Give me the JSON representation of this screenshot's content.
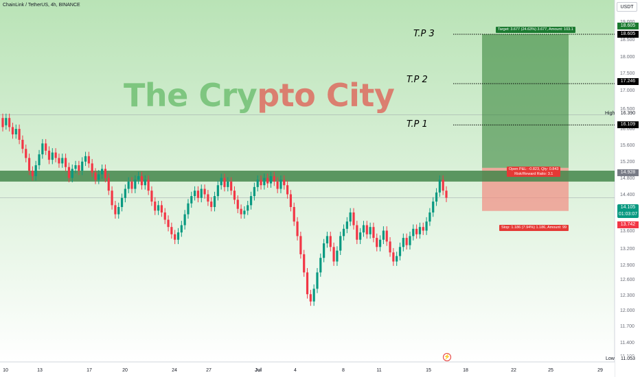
{
  "header": {
    "symbol_title": "ChainLink / TetherUS, 4h, BINANCE",
    "currency": "USDT"
  },
  "watermark": {
    "part_a": "The Cry",
    "part_b": "pto City"
  },
  "annotations": {
    "tp3": "T.P 3",
    "tp2": "T.P 2",
    "tp1": "T.P 1",
    "target_text": "Target: 3.677 (24.63%) 3.677, Amount: 103.1",
    "pnl_text_1": "Open P&L: -0.823, Qty: 0.843",
    "pnl_text_2": "Risk/Reward Ratio: 3.1",
    "stop_text": "Stop: 1.186 (7.94%) 1.186, Amount: 99"
  },
  "price_tags": {
    "target_top": "18.605",
    "target_line": "18.605",
    "tp2": "17.246",
    "high_value": "16.390",
    "tp1": "16.109",
    "entry": "14.928",
    "current": "14.105",
    "countdown": "01:03:07",
    "stop": "13.742",
    "low_value": "11.053"
  },
  "labels": {
    "high": "High",
    "low": "Low"
  },
  "icons": {
    "lightning": "⚡"
  },
  "colors": {
    "up": "#089981",
    "down": "#f23645",
    "bg_top": "#b9e3b6",
    "zone": "#43864a"
  },
  "chart_data": {
    "type": "candlestick",
    "timeframe": "4h",
    "y_ticks": [
      "19.000",
      "18.500",
      "18.000",
      "17.500",
      "17.000",
      "16.500",
      "16.000",
      "15.600",
      "15.200",
      "14.800",
      "14.400",
      "14.000",
      "13.600",
      "13.200",
      "12.900",
      "12.600",
      "12.300",
      "12.000",
      "11.700",
      "11.400",
      "11.100"
    ],
    "x_ticks": [
      "10",
      "13",
      "17",
      "20",
      "24",
      "27",
      "Jul",
      "4",
      "8",
      "11",
      "15",
      "18",
      "22",
      "25",
      "29"
    ],
    "last_price": 14.105,
    "high": 16.39,
    "low": 11.053,
    "position": {
      "entry": 14.928,
      "target": 18.605,
      "stop": 13.742
    },
    "take_profits": [
      {
        "label": "T.P 3",
        "price": 18.605
      },
      {
        "label": "T.P 2",
        "price": 17.246
      },
      {
        "label": "T.P 1",
        "price": 16.109
      }
    ],
    "zone": {
      "from": 14.55,
      "to": 14.85
    },
    "candles": [
      [
        16.3,
        16.05
      ],
      [
        16.1,
        16.3
      ],
      [
        16.3,
        16.05
      ],
      [
        16.05,
        15.85
      ],
      [
        15.85,
        16.0
      ],
      [
        16.0,
        15.7
      ],
      [
        15.7,
        15.45
      ],
      [
        15.45,
        15.2
      ],
      [
        15.2,
        14.85
      ],
      [
        14.85,
        14.7
      ],
      [
        14.7,
        15.0
      ],
      [
        15.0,
        15.3
      ],
      [
        15.3,
        15.6
      ],
      [
        15.6,
        15.4
      ],
      [
        15.4,
        15.15
      ],
      [
        15.15,
        15.35
      ],
      [
        15.35,
        15.2
      ],
      [
        15.2,
        15.05
      ],
      [
        15.05,
        15.2
      ],
      [
        15.2,
        14.95
      ],
      [
        14.95,
        14.65
      ],
      [
        14.65,
        14.9
      ],
      [
        14.9,
        15.0
      ],
      [
        15.0,
        14.85
      ],
      [
        14.85,
        15.1
      ],
      [
        15.1,
        15.25
      ],
      [
        15.25,
        15.05
      ],
      [
        15.05,
        14.8
      ],
      [
        14.8,
        14.6
      ],
      [
        14.6,
        14.75
      ],
      [
        14.75,
        14.9
      ],
      [
        14.9,
        14.65
      ],
      [
        14.65,
        14.3
      ],
      [
        14.3,
        13.9
      ],
      [
        13.9,
        13.65
      ],
      [
        13.65,
        13.85
      ],
      [
        13.85,
        14.1
      ],
      [
        14.1,
        14.35
      ],
      [
        14.35,
        14.55
      ],
      [
        14.55,
        14.35
      ],
      [
        14.35,
        14.6
      ],
      [
        14.6,
        14.7
      ],
      [
        14.7,
        14.45
      ],
      [
        14.45,
        14.6
      ],
      [
        14.6,
        14.3
      ],
      [
        14.3,
        14.0
      ],
      [
        14.0,
        13.75
      ],
      [
        13.75,
        13.9
      ],
      [
        13.9,
        13.7
      ],
      [
        13.7,
        13.5
      ],
      [
        13.5,
        13.3
      ],
      [
        13.3,
        13.1
      ],
      [
        13.1,
        12.95
      ],
      [
        12.95,
        13.15
      ],
      [
        13.15,
        13.35
      ],
      [
        13.35,
        13.65
      ],
      [
        13.65,
        13.95
      ],
      [
        13.95,
        14.15
      ],
      [
        14.15,
        14.3
      ],
      [
        14.3,
        14.1
      ],
      [
        14.1,
        14.35
      ],
      [
        14.35,
        14.2
      ],
      [
        14.2,
        14.0
      ],
      [
        14.0,
        13.85
      ],
      [
        13.85,
        14.15
      ],
      [
        14.15,
        14.45
      ],
      [
        14.45,
        14.65
      ],
      [
        14.65,
        14.4
      ],
      [
        14.4,
        14.55
      ],
      [
        14.55,
        14.3
      ],
      [
        14.3,
        14.05
      ],
      [
        14.05,
        13.8
      ],
      [
        13.8,
        13.65
      ],
      [
        13.65,
        13.75
      ],
      [
        13.75,
        13.9
      ],
      [
        13.9,
        14.15
      ],
      [
        14.15,
        14.4
      ],
      [
        14.4,
        14.6
      ],
      [
        14.6,
        14.45
      ],
      [
        14.45,
        14.65
      ],
      [
        14.65,
        14.5
      ],
      [
        14.5,
        14.7
      ],
      [
        14.7,
        14.55
      ],
      [
        14.55,
        14.35
      ],
      [
        14.35,
        14.6
      ],
      [
        14.6,
        14.45
      ],
      [
        14.45,
        14.2
      ],
      [
        14.2,
        13.85
      ],
      [
        13.85,
        13.45
      ],
      [
        13.45,
        13.05
      ],
      [
        13.05,
        12.55
      ],
      [
        12.55,
        12.05
      ],
      [
        12.05,
        11.45
      ],
      [
        11.45,
        11.25
      ],
      [
        11.25,
        11.6
      ],
      [
        11.6,
        12.05
      ],
      [
        12.05,
        12.45
      ],
      [
        12.45,
        12.85
      ],
      [
        12.85,
        13.05
      ],
      [
        13.05,
        12.75
      ],
      [
        12.75,
        12.35
      ],
      [
        12.35,
        12.65
      ],
      [
        12.65,
        13.05
      ],
      [
        13.05,
        13.25
      ],
      [
        13.25,
        13.45
      ],
      [
        13.45,
        13.7
      ],
      [
        13.7,
        13.35
      ],
      [
        13.35,
        12.95
      ],
      [
        12.95,
        13.15
      ],
      [
        13.15,
        13.35
      ],
      [
        13.35,
        13.1
      ],
      [
        13.1,
        13.3
      ],
      [
        13.3,
        13.0
      ],
      [
        13.0,
        12.75
      ],
      [
        12.75,
        12.95
      ],
      [
        12.95,
        13.2
      ],
      [
        13.2,
        12.9
      ],
      [
        12.9,
        12.6
      ],
      [
        12.6,
        12.35
      ],
      [
        12.35,
        12.5
      ],
      [
        12.5,
        12.75
      ],
      [
        12.75,
        13.0
      ],
      [
        13.0,
        12.8
      ],
      [
        12.8,
        13.05
      ],
      [
        13.05,
        13.25
      ],
      [
        13.25,
        13.1
      ],
      [
        13.1,
        13.3
      ],
      [
        13.3,
        13.2
      ],
      [
        13.2,
        13.45
      ],
      [
        13.45,
        13.7
      ],
      [
        13.7,
        14.0
      ],
      [
        14.0,
        14.25
      ],
      [
        14.25,
        14.6
      ],
      [
        14.6,
        14.3
      ],
      [
        14.3,
        14.105
      ]
    ]
  }
}
